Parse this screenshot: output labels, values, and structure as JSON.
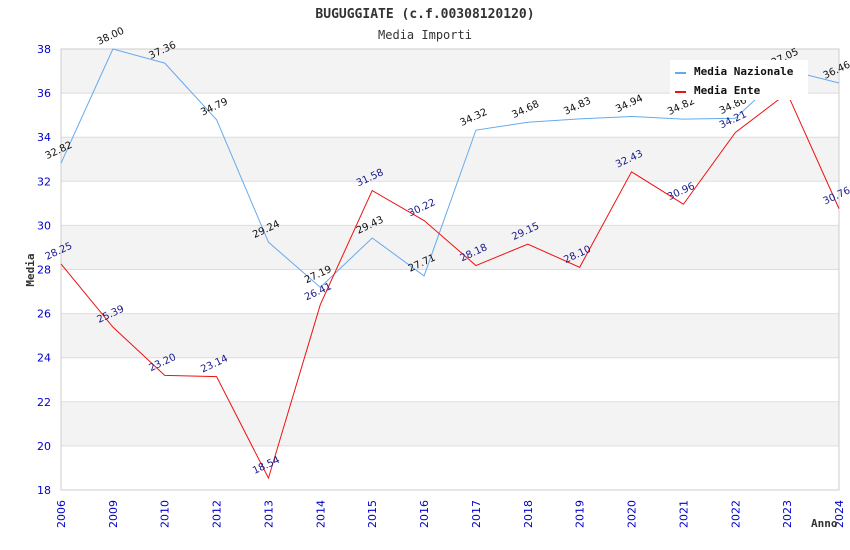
{
  "chart_data": {
    "type": "line",
    "title": "BUGUGGIATE (c.f.00308120120)",
    "subtitle": "Media Importi",
    "xlabel": "Anno",
    "ylabel": "Media",
    "ylim": [
      18,
      38
    ],
    "yticks": [
      "18",
      "20",
      "22",
      "24",
      "26",
      "28",
      "30",
      "32",
      "34",
      "36",
      "38"
    ],
    "categories": [
      "2006",
      "2009",
      "2010",
      "2012",
      "2013",
      "2014",
      "2015",
      "2016",
      "2017",
      "2018",
      "2019",
      "2020",
      "2021",
      "2022",
      "2023",
      "2024"
    ],
    "grid": true,
    "legend_position": "top-right",
    "series": [
      {
        "name": "Media Nazionale",
        "color": "#66aaee",
        "values": [
          32.82,
          38.0,
          37.36,
          34.79,
          29.24,
          27.19,
          29.43,
          27.71,
          34.32,
          34.68,
          34.83,
          34.94,
          34.82,
          34.86,
          37.05,
          36.46
        ],
        "labels": [
          "32.82",
          "38.00",
          "37.36",
          "34.79",
          "29.24",
          "27.19",
          "29.43",
          "27.71",
          "34.32",
          "34.68",
          "34.83",
          "34.94",
          "34.82",
          "34.86",
          "37.05",
          "36.46"
        ]
      },
      {
        "name": "Media Ente",
        "color": "#ee1111",
        "values": [
          28.25,
          25.39,
          23.2,
          23.14,
          18.54,
          26.41,
          31.58,
          30.22,
          28.18,
          29.15,
          28.1,
          32.43,
          30.96,
          34.21,
          36.0,
          30.76
        ],
        "labels": [
          "28.25",
          "25.39",
          "23.20",
          "23.14",
          "18.54",
          "26.41",
          "31.58",
          "30.22",
          "28.18",
          "29.15",
          "28.10",
          "32.43",
          "30.96",
          "34.21",
          "",
          "30.76"
        ]
      }
    ]
  }
}
